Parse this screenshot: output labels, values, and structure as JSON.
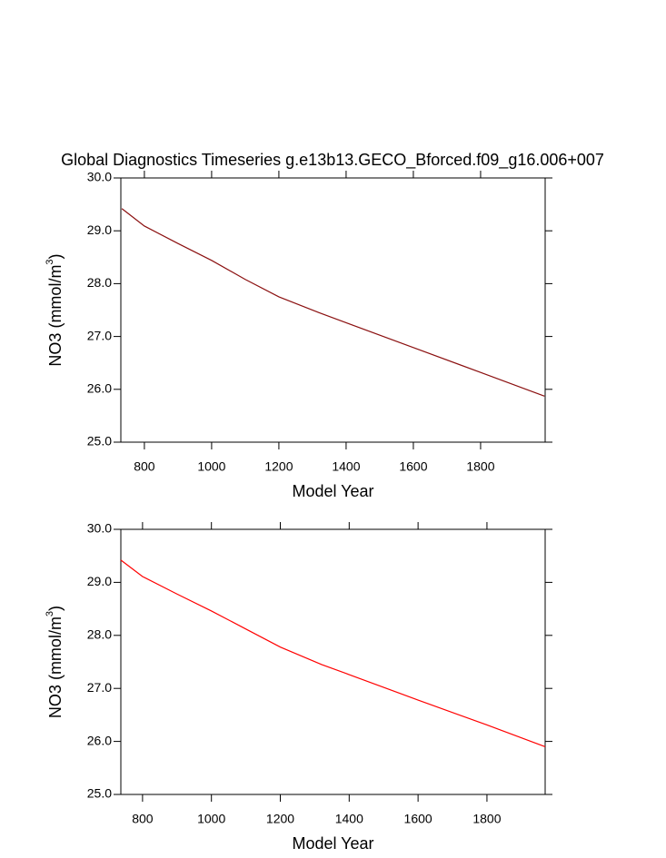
{
  "chart_data": [
    {
      "type": "line",
      "title": "Global Diagnostics Timeseries g.e13b13.GECO_Bforced.f09_g16.006+007",
      "xlabel": "Model Year",
      "ylabel": "NO3 (mmol/m",
      "ylabel_sup": "3",
      "ylabel_end": ")",
      "x": [
        733,
        800,
        900,
        1000,
        1100,
        1200,
        1320,
        1400,
        1600,
        1800,
        1990
      ],
      "series": [
        {
          "color": "#8b1010",
          "values": [
            29.42,
            29.09,
            28.76,
            28.44,
            28.08,
            27.75,
            27.45,
            27.26,
            26.79,
            26.32,
            25.87
          ]
        }
      ],
      "xlim": [
        730,
        1992
      ],
      "xticks": [
        800,
        1000,
        1200,
        1400,
        1600,
        1800
      ],
      "ylim": [
        25,
        30
      ],
      "yticks": [
        {
          "value": 25,
          "label": "25.0"
        },
        {
          "value": 26,
          "label": "26.0"
        },
        {
          "value": 27,
          "label": "27.0"
        },
        {
          "value": 28,
          "label": "28.0"
        },
        {
          "value": 29,
          "label": "29.0"
        },
        {
          "value": 30,
          "label": "30.0"
        }
      ]
    },
    {
      "type": "line",
      "xlabel": "Model Year",
      "ylabel": "NO3 (mmol/m",
      "ylabel_sup": "3",
      "ylabel_end": ")",
      "x": [
        737,
        800,
        900,
        1000,
        1100,
        1200,
        1320,
        1400,
        1600,
        1800,
        1969
      ],
      "series": [
        {
          "color": "#ff0000",
          "values": [
            29.42,
            29.11,
            28.78,
            28.46,
            28.12,
            27.78,
            27.45,
            27.26,
            26.78,
            26.31,
            25.9
          ]
        }
      ],
      "xlim": [
        737,
        1969
      ],
      "xticks": [
        800,
        1000,
        1200,
        1400,
        1600,
        1800
      ],
      "ylim": [
        25,
        30
      ],
      "yticks": [
        {
          "value": 25,
          "label": "25.0"
        },
        {
          "value": 26,
          "label": "26.0"
        },
        {
          "value": 27,
          "label": "27.0"
        },
        {
          "value": 28,
          "label": "28.0"
        },
        {
          "value": 29,
          "label": "29.0"
        },
        {
          "value": 30,
          "label": "30.0"
        }
      ]
    }
  ]
}
